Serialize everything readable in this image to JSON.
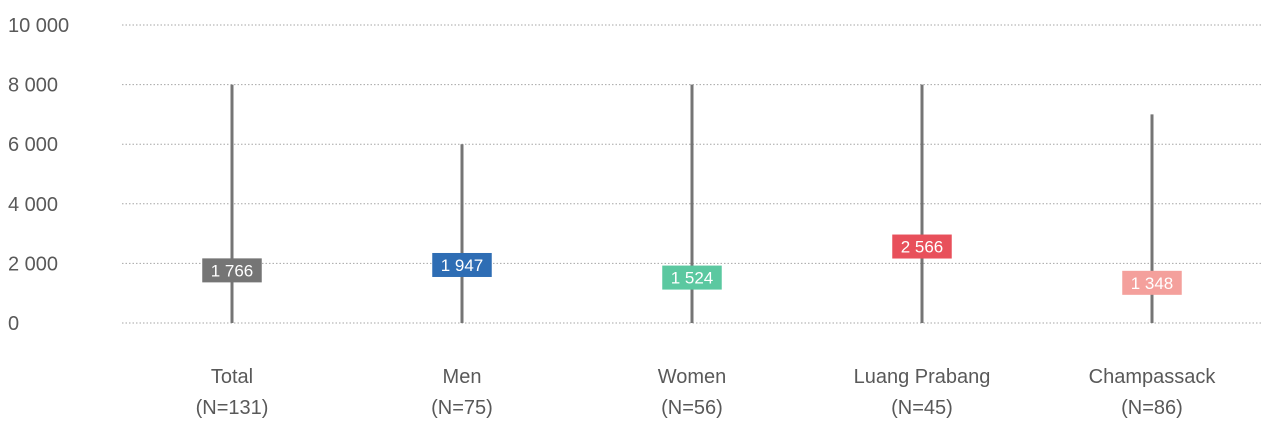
{
  "chart_data": {
    "type": "bar",
    "subtype": "range-with-median",
    "title": "",
    "xlabel": "",
    "ylabel": "",
    "ylim": [
      0,
      10000
    ],
    "yticks": [
      0,
      2000,
      4000,
      6000,
      8000,
      10000
    ],
    "ytick_labels": [
      "0",
      "2 000",
      "4 000",
      "6 000",
      "8 000",
      "10 000"
    ],
    "grid": true,
    "legend": "none",
    "categories": [
      {
        "name": "Total",
        "n_label": "(N=131)",
        "min": 0,
        "max": 8000,
        "value": 1766,
        "value_label": "1 766",
        "color": "#757575"
      },
      {
        "name": "Men",
        "n_label": "(N=75)",
        "min": 0,
        "max": 6000,
        "value": 1947,
        "value_label": "1 947",
        "color": "#2E6DB4"
      },
      {
        "name": "Women",
        "n_label": "(N=56)",
        "min": 0,
        "max": 8000,
        "value": 1524,
        "value_label": "1 524",
        "color": "#5BC8A0"
      },
      {
        "name": "Luang Prabang",
        "n_label": "(N=45)",
        "min": 0,
        "max": 8000,
        "value": 2566,
        "value_label": "2 566",
        "color": "#E8505B"
      },
      {
        "name": "Champassack",
        "n_label": "(N=86)",
        "min": 0,
        "max": 7000,
        "value": 1348,
        "value_label": "1 348",
        "color": "#F4A09C"
      }
    ],
    "range_line_color": "#757575",
    "grid_color": "#a6a6a6"
  }
}
